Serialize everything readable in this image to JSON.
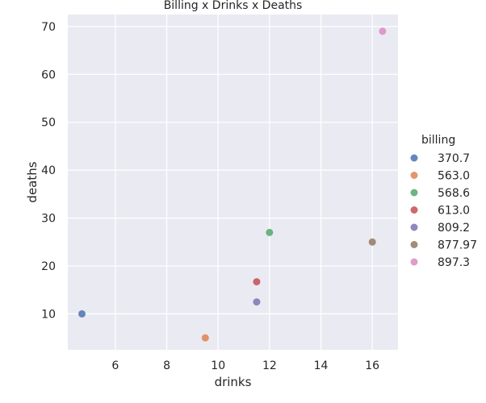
{
  "chart_data": {
    "type": "scatter",
    "title": "Billing x Drinks x Deaths",
    "xlabel": "drinks",
    "ylabel": "deaths",
    "xlim": [
      4.15,
      17.0
    ],
    "ylim": [
      2.5,
      72.5
    ],
    "xticks": [
      6,
      8,
      10,
      12,
      14,
      16
    ],
    "yticks": [
      10,
      20,
      30,
      40,
      50,
      60,
      70
    ],
    "grid": true,
    "legend": {
      "title": "billing",
      "placement": "right"
    },
    "series": [
      {
        "name": "370.7",
        "color": "#4c72b0",
        "points": [
          {
            "x": 4.7,
            "y": 10
          }
        ]
      },
      {
        "name": "563.0",
        "color": "#dd8452",
        "points": [
          {
            "x": 9.5,
            "y": 5
          }
        ]
      },
      {
        "name": "568.6",
        "color": "#55a868",
        "points": [
          {
            "x": 12.0,
            "y": 27
          }
        ]
      },
      {
        "name": "613.0",
        "color": "#c44e52",
        "points": [
          {
            "x": 11.5,
            "y": 16.7
          }
        ]
      },
      {
        "name": "809.2",
        "color": "#8172b3",
        "points": [
          {
            "x": 11.5,
            "y": 12.5
          }
        ]
      },
      {
        "name": "877.97",
        "color": "#937860",
        "points": [
          {
            "x": 16.0,
            "y": 25
          }
        ]
      },
      {
        "name": "897.3",
        "color": "#da8bc3",
        "points": [
          {
            "x": 16.4,
            "y": 69
          }
        ]
      }
    ]
  }
}
